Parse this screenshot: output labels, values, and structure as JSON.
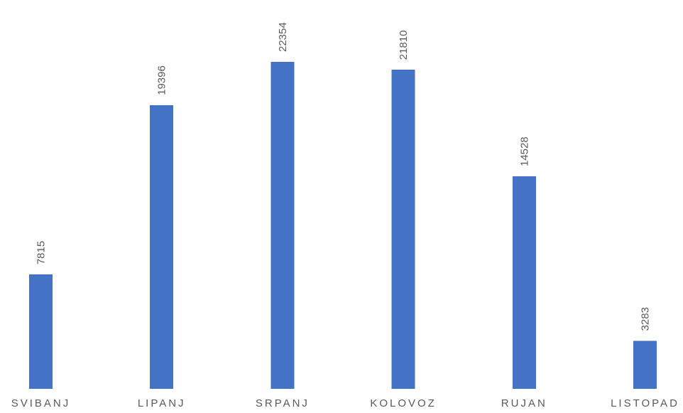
{
  "chart_data": {
    "type": "bar",
    "title": "",
    "xlabel": "",
    "ylabel": "",
    "categories": [
      "SVIBANJ",
      "LIPANJ",
      "SRPANJ",
      "KOLOVOZ",
      "RUJAN",
      "LISTOPAD"
    ],
    "values": [
      7815,
      19396,
      22354,
      21810,
      14528,
      3283
    ],
    "data_labels": [
      "7815",
      "19396",
      "22354",
      "21810",
      "14528",
      "3283"
    ],
    "ylim": [
      0,
      24000
    ],
    "grid": false,
    "legend": "none",
    "bar_color": "#4472C4",
    "text_color": "#595959"
  }
}
